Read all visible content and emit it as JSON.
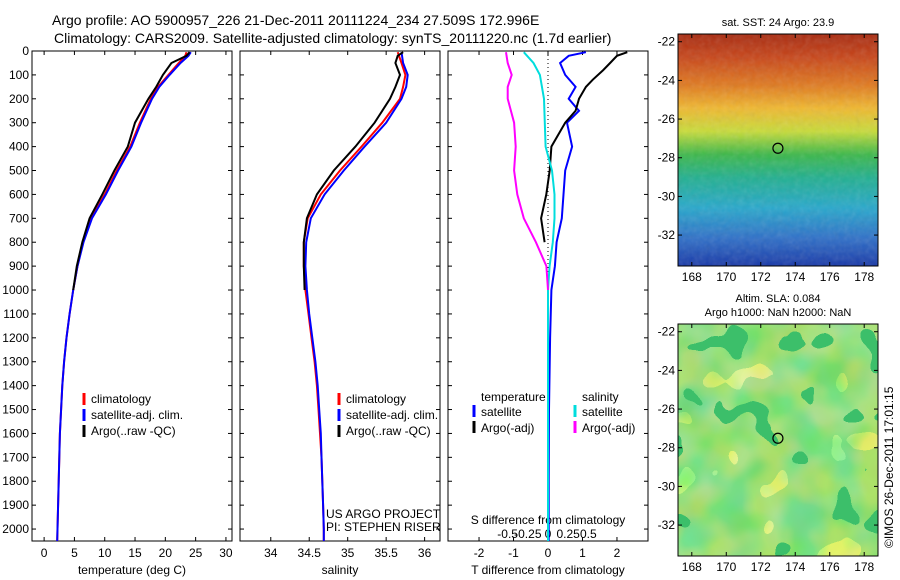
{
  "title_line1": "Argo profile: AO 5900957_226 21-Dec-2011 20111224_234 27.509S 172.996E",
  "title_line2": "Climatology: CARS2009. Satellite-adjusted climatology: synTS_20111220.nc (1.7d earlier)",
  "chart_data": [
    {
      "type": "line",
      "xlabel": "temperature (deg C)",
      "ylabel": "",
      "xlim": [
        -2,
        31
      ],
      "ylim": [
        2050,
        0
      ],
      "xticks": [
        0,
        5,
        10,
        15,
        20,
        25,
        30
      ],
      "yticks": [
        0,
        100,
        200,
        300,
        400,
        500,
        600,
        700,
        800,
        900,
        1000,
        1100,
        1200,
        1300,
        1400,
        1500,
        1600,
        1700,
        1800,
        1900,
        2000
      ],
      "legend": [
        "climatology",
        "satellite-adj. clim.",
        "Argo(..raw -QC)"
      ],
      "legend_position": "lower-center",
      "series": [
        {
          "name": "climatology",
          "color": "#ff0000",
          "depth": [
            5,
            20,
            50,
            100,
            150,
            200,
            300,
            400,
            500,
            600,
            700,
            800,
            900,
            1000,
            1100,
            1200,
            1300,
            1400,
            1500,
            1600,
            1700,
            1800,
            1900,
            2000,
            2050
          ],
          "values": [
            23.5,
            23.3,
            22.2,
            20.5,
            18.8,
            17.6,
            15.8,
            14.2,
            12.0,
            10.0,
            7.8,
            6.4,
            5.5,
            4.8,
            4.2,
            3.7,
            3.3,
            3.0,
            2.8,
            2.6,
            2.5,
            2.4,
            2.3,
            2.2,
            2.15
          ]
        },
        {
          "name": "satellite-adj. clim.",
          "color": "#0000ff",
          "depth": [
            5,
            20,
            50,
            100,
            150,
            200,
            300,
            400,
            500,
            600,
            700,
            800,
            900,
            1000,
            1100,
            1200,
            1300,
            1400,
            1500,
            1600,
            1700,
            1800,
            1900,
            2000,
            2050
          ],
          "values": [
            24.2,
            23.8,
            22.5,
            20.7,
            19.0,
            17.8,
            16.0,
            14.4,
            12.2,
            10.2,
            7.9,
            6.5,
            5.5,
            4.8,
            4.2,
            3.7,
            3.3,
            3.0,
            2.8,
            2.6,
            2.5,
            2.4,
            2.3,
            2.2,
            2.15
          ]
        },
        {
          "name": "Argo(..raw -QC)",
          "color": "#000000",
          "depth": [
            5,
            20,
            50,
            100,
            150,
            200,
            300,
            400,
            500,
            600,
            700,
            800,
            900,
            1000
          ],
          "values": [
            24.0,
            23.5,
            21.0,
            19.6,
            18.5,
            17.2,
            15.0,
            13.8,
            11.6,
            9.6,
            7.5,
            6.3,
            5.4,
            4.8
          ]
        }
      ]
    },
    {
      "type": "line",
      "xlabel": "salinity",
      "ylabel": "",
      "xlim": [
        33.6,
        36.2
      ],
      "ylim": [
        2050,
        0
      ],
      "xticks": [
        34,
        34.5,
        35,
        35.5,
        36
      ],
      "legend": [
        "climatology",
        "satellite-adj. clim.",
        "Argo(..raw -QC)"
      ],
      "legend_position": "lower-right",
      "annotation_lines": [
        "US ARGO PROJECT",
        "PI: STEPHEN RISER"
      ],
      "series": [
        {
          "name": "climatology",
          "color": "#ff0000",
          "depth": [
            5,
            50,
            100,
            150,
            200,
            300,
            400,
            500,
            600,
            700,
            800,
            900,
            1000,
            1100,
            1200,
            1300,
            1400,
            1500,
            1600,
            1700,
            1800,
            1900,
            2000,
            2050
          ],
          "values": [
            35.65,
            35.7,
            35.75,
            35.72,
            35.68,
            35.45,
            35.18,
            34.9,
            34.65,
            34.48,
            34.43,
            34.43,
            34.45,
            34.49,
            34.53,
            34.57,
            34.6,
            34.62,
            34.64,
            34.66,
            34.67,
            34.68,
            34.69,
            34.69
          ]
        },
        {
          "name": "satellite-adj. clim.",
          "color": "#0000ff",
          "depth": [
            5,
            50,
            100,
            150,
            200,
            300,
            400,
            500,
            600,
            700,
            800,
            900,
            1000,
            1100,
            1200,
            1300,
            1400,
            1500,
            1600,
            1700,
            1800,
            1900,
            2000,
            2050
          ],
          "values": [
            35.7,
            35.72,
            35.78,
            35.76,
            35.7,
            35.5,
            35.22,
            34.95,
            34.7,
            34.52,
            34.46,
            34.45,
            34.47,
            34.5,
            34.54,
            34.58,
            34.61,
            34.63,
            34.65,
            34.66,
            34.67,
            34.68,
            34.69,
            34.69
          ]
        },
        {
          "name": "Argo(..raw -QC)",
          "color": "#000000",
          "depth": [
            5,
            20,
            50,
            100,
            150,
            200,
            300,
            400,
            500,
            600,
            700,
            800,
            900,
            1000
          ],
          "values": [
            35.72,
            35.65,
            35.62,
            35.68,
            35.62,
            35.55,
            35.35,
            35.1,
            34.82,
            34.6,
            34.47,
            34.43,
            34.43,
            34.44
          ]
        }
      ]
    },
    {
      "type": "line",
      "xlabel": "T difference from climatology",
      "ylabel": "",
      "xlim": [
        -2.9,
        2.9
      ],
      "ylim": [
        2050,
        0
      ],
      "xticks": [
        -2,
        -1,
        0,
        1,
        2
      ],
      "secondary_axis_label": "S difference from climatology",
      "secondary_ticks": [
        -0.5,
        -0.25,
        0,
        0.25,
        0.5
      ],
      "legend_groups": [
        {
          "title": "temperature",
          "entries": [
            "satellite",
            "Argo(-adj)"
          ]
        },
        {
          "title": "salinity",
          "entries": [
            "satellite",
            "Argo(-adj)"
          ]
        }
      ],
      "series": [
        {
          "name": "temperature satellite",
          "color": "#0000ff",
          "depth": [
            5,
            20,
            50,
            100,
            150,
            200,
            250,
            300,
            400,
            500,
            600,
            700,
            800,
            900,
            1000,
            1200,
            1500,
            1800,
            2050
          ],
          "values": [
            1.1,
            0.6,
            0.35,
            0.5,
            0.8,
            0.6,
            0.9,
            0.55,
            0.7,
            0.5,
            0.45,
            0.4,
            0.25,
            0.2,
            0.1,
            0.06,
            0.03,
            0.02,
            0.02
          ]
        },
        {
          "name": "temperature Argo(-adj)",
          "color": "#000000",
          "depth": [
            5,
            20,
            50,
            80,
            120,
            150,
            200,
            250,
            300,
            400,
            500,
            600,
            700,
            800
          ],
          "values": [
            2.3,
            2.0,
            1.8,
            1.6,
            1.3,
            1.1,
            0.9,
            0.8,
            0.5,
            0.1,
            0.05,
            -0.05,
            -0.2,
            -0.1
          ]
        },
        {
          "name": "salinity satellite",
          "color": "#00dddd",
          "depth": [
            5,
            50,
            100,
            200,
            300,
            400,
            500,
            600,
            700,
            800,
            900,
            1000,
            1200,
            1500,
            1800,
            2050
          ],
          "values": [
            -0.3,
            -0.18,
            -0.1,
            -0.05,
            -0.04,
            -0.03,
            0.05,
            0.08,
            0.08,
            0.06,
            0.02,
            0.0,
            0.0,
            0.0,
            0.0,
            0.0
          ]
        },
        {
          "name": "salinity Argo(-adj)",
          "color": "#ff00ff",
          "depth": [
            5,
            50,
            100,
            150,
            200,
            300,
            400,
            500,
            600,
            700,
            800,
            900,
            1000
          ],
          "values": [
            -0.52,
            -0.5,
            -0.45,
            -0.5,
            -0.5,
            -0.42,
            -0.4,
            -0.42,
            -0.38,
            -0.3,
            -0.15,
            -0.02,
            0.0
          ]
        }
      ]
    },
    {
      "type": "heatmap",
      "title": "sat. SST: 24 Argo: 23.9",
      "xlim": [
        167.2,
        178.8
      ],
      "ylim": [
        -33.6,
        -21.6
      ],
      "xticks": [
        168,
        170,
        172,
        174,
        176,
        178
      ],
      "yticks": [
        -22,
        -24,
        -26,
        -28,
        -30,
        -32
      ],
      "marker": {
        "lon": 172.996,
        "lat": -27.509
      }
    },
    {
      "type": "heatmap",
      "title": "Altim. SLA: 0.084",
      "subtitle": "Argo h1000: NaN h2000: NaN",
      "xlim": [
        167.2,
        178.8
      ],
      "ylim": [
        -33.6,
        -21.6
      ],
      "xticks": [
        168,
        170,
        172,
        174,
        176,
        178
      ],
      "yticks": [
        -22,
        -24,
        -26,
        -28,
        -30,
        -32
      ],
      "marker": {
        "lon": 172.996,
        "lat": -27.509
      }
    }
  ],
  "side_label": "©IMOS 26-Dec-2011 17:01:15"
}
